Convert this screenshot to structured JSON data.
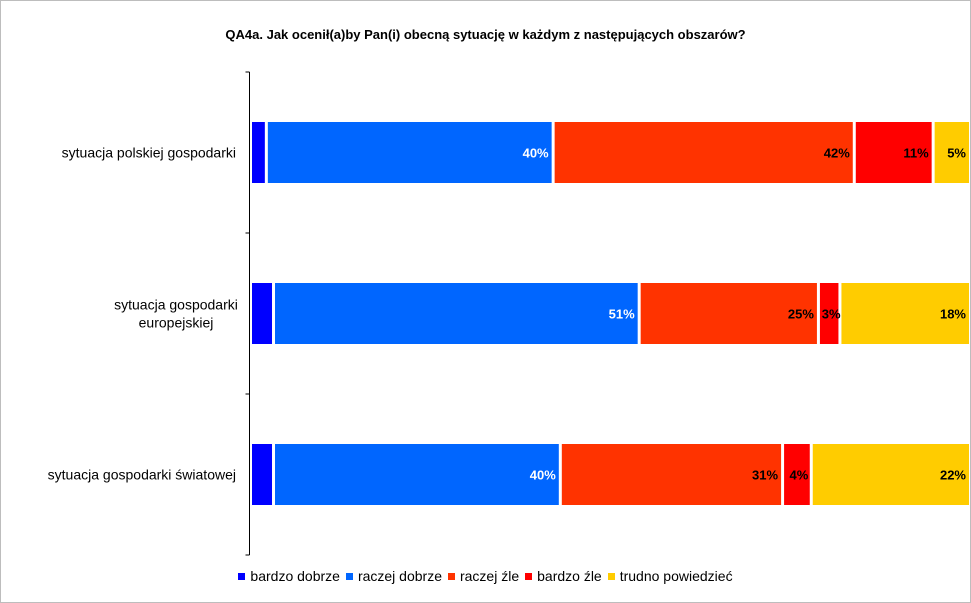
{
  "chart_data": {
    "type": "bar",
    "orientation": "horizontal",
    "stacked": true,
    "title": "QA4a. Jak ocenił(a)by Pan(i) obecną sytuację w każdym z następujących obszarów?",
    "categories": [
      "sytuacja polskiej gospodarki",
      "sytuacja gospodarki europejskiej",
      "sytuacja gospodarki światowej"
    ],
    "series": [
      {
        "name": "bardzo dobrze",
        "color": "#0000ff",
        "values": [
          2,
          3,
          3
        ],
        "label_color": "#ffffff"
      },
      {
        "name": "raczej dobrze",
        "color": "#0066ff",
        "values": [
          40,
          51,
          40
        ],
        "label_color": "#ffffff"
      },
      {
        "name": "raczej źle",
        "color": "#ff3300",
        "values": [
          42,
          25,
          31
        ],
        "label_color": "#000000"
      },
      {
        "name": "bardzo źle",
        "color": "#ff0000",
        "values": [
          11,
          3,
          4
        ],
        "label_color": "#000000"
      },
      {
        "name": "trudno powiedzieć",
        "color": "#ffcc00",
        "values": [
          5,
          18,
          22
        ],
        "label_color": "#000000"
      }
    ],
    "value_suffix": "%",
    "xlim": [
      0,
      100
    ],
    "grid": false,
    "legend_position": "bottom"
  }
}
